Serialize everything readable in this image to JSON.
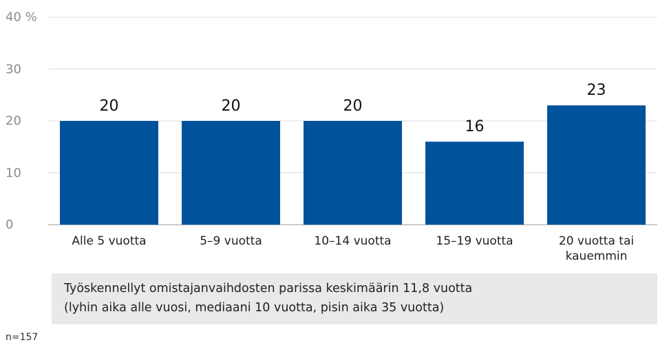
{
  "chart_data": {
    "type": "bar",
    "categories": [
      "Alle 5 vuotta",
      "5–9 vuotta",
      "10–14 vuotta",
      "15–19 vuotta",
      "20 vuotta tai kauemmin"
    ],
    "values": [
      20,
      20,
      20,
      16,
      23
    ],
    "color": "#00529b",
    "ylim": [
      0,
      40
    ],
    "yticks": [
      0,
      10,
      20,
      30,
      {
        "value": 40,
        "label": "40 %"
      }
    ],
    "grid": true,
    "note": [
      "Työskennellyt omistajanvaihdosten parissa keskimäärin 11,8 vuotta",
      "(lyhin aika alle vuosi, mediaani 10 vuotta, pisin aika 35 vuotta)"
    ],
    "footnote": "n=157"
  }
}
